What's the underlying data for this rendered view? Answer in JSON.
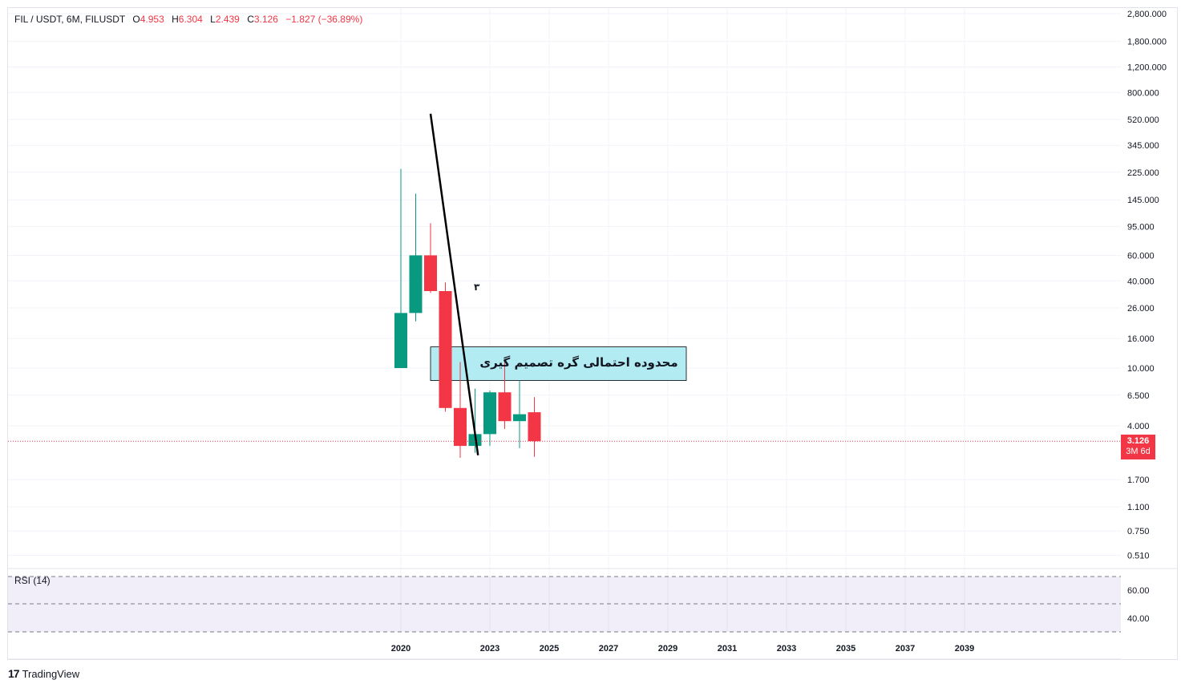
{
  "header": {
    "symbol": "FIL / USDT, 6M, FILUSDT",
    "open_label": "O",
    "open": "4.953",
    "high_label": "H",
    "high": "6.304",
    "low_label": "L",
    "low": "2.439",
    "close_label": "C",
    "close": "3.126",
    "change": "−1.827 (−36.89%)"
  },
  "rsi": {
    "label": "RSI (14)",
    "ticks": [
      "60.00",
      "40.00"
    ]
  },
  "price_tag": {
    "value": "3.126",
    "countdown": "3M 6d"
  },
  "annotation": {
    "zone_text": "محدوده احتمالی گره تصمیم گیری",
    "wave_label": "۳"
  },
  "footer": {
    "brand": "TradingView",
    "icon": "tradingview-logo-icon"
  },
  "colors": {
    "up": "#089981",
    "down": "#f23645",
    "zone_fill": "#b2ebf2",
    "trendline": "#000000",
    "rsi_band": "#7e57c2"
  },
  "chart_data": {
    "type": "candlestick",
    "scale": "log",
    "timeframe": "6M",
    "y_ticks": [
      2800,
      1800,
      1200,
      800,
      520,
      345,
      225,
      145,
      95,
      60,
      40,
      26,
      16,
      10,
      6.5,
      4,
      1.7,
      1.1,
      0.75,
      0.51
    ],
    "y_tick_labels": [
      "2,800.000",
      "1,800.000",
      "1,200.000",
      "800.000",
      "520.000",
      "345.000",
      "225.000",
      "145.000",
      "95.000",
      "60.000",
      "40.000",
      "26.000",
      "16.000",
      "10.000",
      "6.500",
      "4.000",
      "1.700",
      "1.100",
      "0.750",
      "0.510"
    ],
    "x_tick_labels": [
      "2020",
      "2023",
      "2025",
      "2027",
      "2029",
      "2031",
      "2033",
      "2035",
      "2037",
      "2039"
    ],
    "x_tick_years": [
      2020,
      2023,
      2025,
      2027,
      2029,
      2031,
      2033,
      2035,
      2037,
      2039
    ],
    "candles": [
      {
        "t": 2020.0,
        "o": 10.0,
        "h": 237.0,
        "l": 10.0,
        "c": 24.0
      },
      {
        "t": 2020.5,
        "o": 24.0,
        "h": 160.0,
        "l": 21.0,
        "c": 60.0
      },
      {
        "t": 2021.0,
        "o": 60.0,
        "h": 100.0,
        "l": 33.0,
        "c": 34.0
      },
      {
        "t": 2021.5,
        "o": 34.0,
        "h": 39.0,
        "l": 5.0,
        "c": 5.3
      },
      {
        "t": 2022.0,
        "o": 5.3,
        "h": 11.0,
        "l": 2.4,
        "c": 2.9
      },
      {
        "t": 2022.5,
        "o": 2.9,
        "h": 7.2,
        "l": 2.6,
        "c": 3.5
      },
      {
        "t": 2023.0,
        "o": 3.5,
        "h": 7.0,
        "l": 2.9,
        "c": 6.8
      },
      {
        "t": 2023.5,
        "o": 6.8,
        "h": 11.0,
        "l": 3.8,
        "c": 4.3
      },
      {
        "t": 2024.0,
        "o": 4.3,
        "h": 8.2,
        "l": 2.8,
        "c": 4.8
      },
      {
        "t": 2024.5,
        "o": 4.953,
        "h": 6.304,
        "l": 2.439,
        "c": 3.126
      }
    ],
    "trendline": {
      "from": {
        "t": 2021.0,
        "price": 570
      },
      "to": {
        "t": 2022.6,
        "price": 2.5
      }
    },
    "zone": {
      "t_start": 2021.0,
      "t_end": 2029.0,
      "price_low": 8.2,
      "price_high": 14.0
    }
  }
}
